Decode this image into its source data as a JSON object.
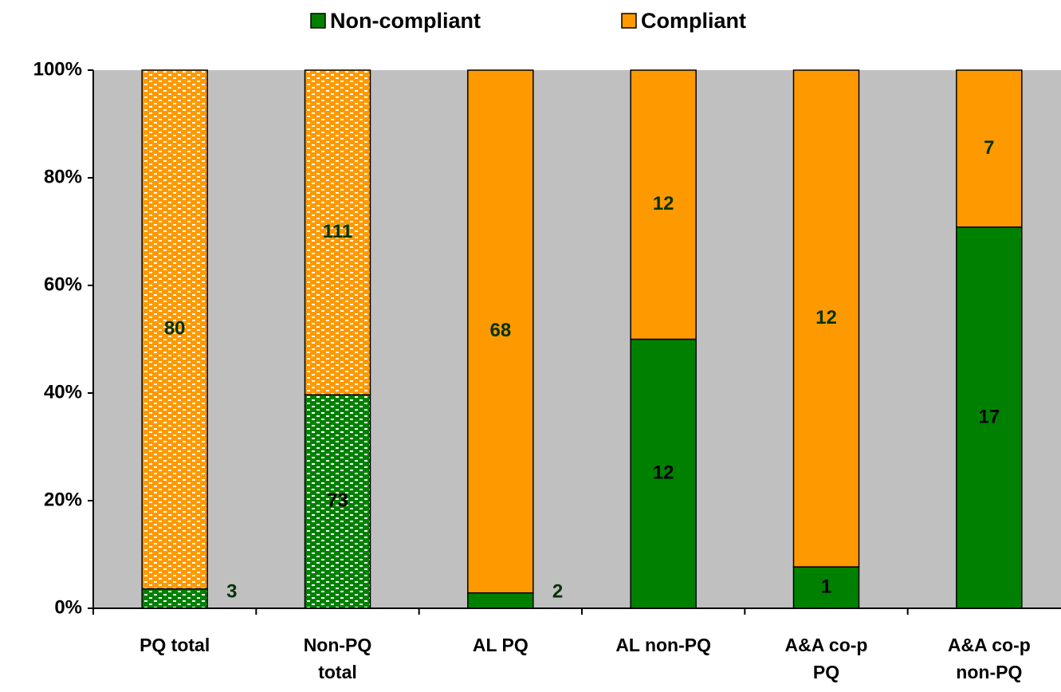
{
  "chart_data": {
    "type": "bar",
    "stack": "percent",
    "categories": [
      "PQ total",
      "Non-PQ total",
      "AL PQ",
      "AL non-PQ",
      "A&A co-p PQ",
      "A&A co-p non-PQ"
    ],
    "series": [
      {
        "name": "Non-compliant",
        "color": "#008000",
        "values": [
          3,
          73,
          2,
          12,
          1,
          17
        ]
      },
      {
        "name": "Compliant",
        "color": "#ff9900",
        "values": [
          80,
          111,
          68,
          12,
          12,
          7
        ]
      }
    ],
    "patterned": [
      true,
      true,
      false,
      false,
      false,
      false
    ],
    "ylim": [
      0,
      100
    ],
    "yticks": [
      {
        "value": 0,
        "label": "0%"
      },
      {
        "value": 20,
        "label": "20%"
      },
      {
        "value": 40,
        "label": "40%"
      },
      {
        "value": 60,
        "label": "60%"
      },
      {
        "value": 80,
        "label": "80%"
      },
      {
        "value": 100,
        "label": "100%"
      }
    ],
    "plot_background": "#c0c0c0",
    "legend": "top"
  }
}
